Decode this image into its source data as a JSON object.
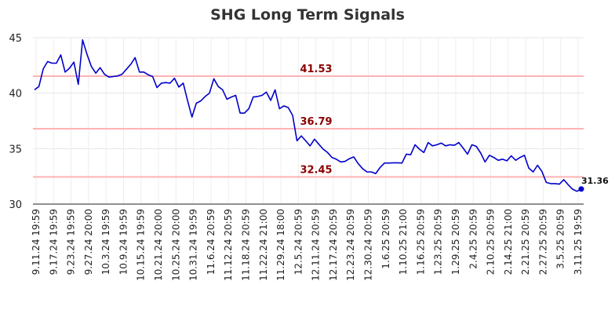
{
  "chart_data": {
    "type": "line",
    "title": "SHG Long Term Signals",
    "xlabel": "",
    "ylabel": "",
    "ylim": [
      30,
      45
    ],
    "yticks": [
      "30",
      "35",
      "40",
      "45"
    ],
    "grid": true,
    "legend": "none",
    "line_color": "#0000cc",
    "signal_color": "#ffb3b3",
    "signal_label_color": "#8b0000",
    "x_tick_labels": [
      "9.11.24 19:59",
      "9.17.24 19:59",
      "9.23.24 19:59",
      "9.27.24 20:00",
      "10.3.24 19:59",
      "10.9.24 19:59",
      "10.15.24 19:59",
      "10.21.24 20:00",
      "10.25.24 20:00",
      "10.31.24 19:59",
      "11.6.24 20:59",
      "11.12.24 20:59",
      "11.18.24 20:59",
      "11.22.24 21:00",
      "11.29.24 18:00",
      "12.5.24 20:59",
      "12.11.24 20:59",
      "12.17.24 20:59",
      "12.23.24 20:59",
      "12.30.24 20:59",
      "1.6.25 20:59",
      "1.10.25 21:00",
      "1.16.25 20:59",
      "1.23.25 20:59",
      "1.29.25 20:59",
      "2.4.25 20:59",
      "2.10.25 20:59",
      "2.14.25 21:00",
      "2.21.25 20:59",
      "2.27.25 20:59",
      "3.5.25 20:59",
      "3.11.25 19:59"
    ],
    "signals": [
      {
        "value": 41.53,
        "label": "41.53"
      },
      {
        "value": 36.79,
        "label": "36.79"
      },
      {
        "value": 32.45,
        "label": "32.45"
      }
    ],
    "last_value_label": "31.36",
    "series": [
      {
        "values": [
          40.3,
          40.6,
          42.2,
          42.85,
          42.7,
          42.7,
          43.45,
          41.9,
          42.25,
          42.8,
          40.8,
          44.8,
          43.5,
          42.4,
          41.8,
          42.3,
          41.7,
          41.45,
          41.5,
          41.55,
          41.7,
          42.15,
          42.6,
          43.2,
          41.9,
          41.9,
          41.65,
          41.5,
          40.5,
          40.9,
          40.95,
          40.9,
          41.35,
          40.55,
          40.9,
          39.3,
          37.85,
          39.1,
          39.3,
          39.7,
          40.0,
          41.3,
          40.6,
          40.3,
          39.45,
          39.65,
          39.8,
          38.2,
          38.2,
          38.6,
          39.65,
          39.7,
          39.8,
          40.1,
          39.35,
          40.3,
          38.6,
          38.85,
          38.7,
          38.0,
          35.7,
          36.15,
          35.7,
          35.25,
          35.85,
          35.4,
          34.95,
          34.65,
          34.2,
          34.05,
          33.8,
          33.85,
          34.1,
          34.25,
          33.65,
          33.2,
          32.9,
          32.9,
          32.75,
          33.3,
          33.7,
          33.7,
          33.72,
          33.72,
          33.7,
          34.5,
          34.45,
          35.35,
          34.95,
          34.65,
          35.55,
          35.25,
          35.35,
          35.5,
          35.25,
          35.35,
          35.3,
          35.55,
          35.05,
          34.5,
          35.35,
          35.2,
          34.6,
          33.8,
          34.4,
          34.2,
          33.95,
          34.05,
          33.9,
          34.35,
          33.95,
          34.2,
          34.4,
          33.25,
          32.9,
          33.5,
          32.95,
          31.95,
          31.85,
          31.85,
          31.8,
          32.2,
          31.75,
          31.35,
          31.15,
          31.36
        ]
      }
    ]
  }
}
